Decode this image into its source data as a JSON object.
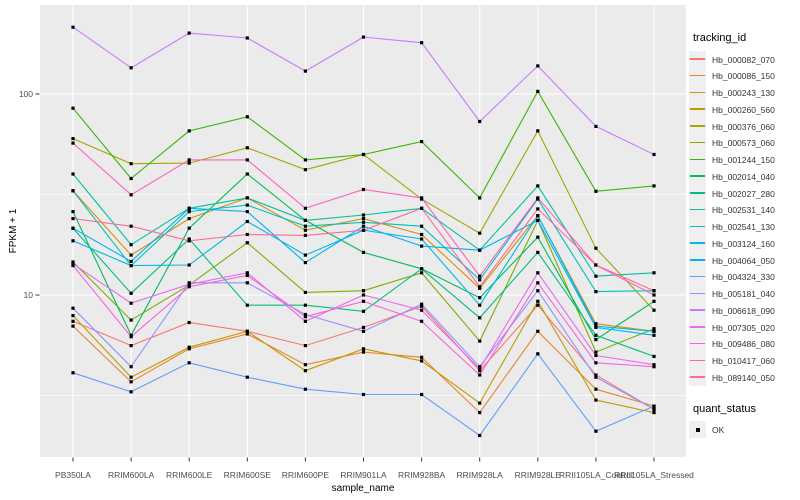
{
  "chart_data": {
    "type": "line",
    "title": "",
    "xlabel": "sample_name",
    "ylabel": "FPKM + 1",
    "y_scale": "log10",
    "ylim": [
      1.6,
      270
    ],
    "grid": true,
    "panel_bg": "#EBEBEB",
    "grid_color": "#FFFFFF",
    "point_shape": "filled-square",
    "point_color": "#000000",
    "y_ticks": [
      {
        "label": "100",
        "value": 100
      },
      {
        "label": "10",
        "value": 10
      }
    ],
    "y_minor": [
      31.6,
      3.16
    ],
    "categories": [
      "PB350LA",
      "RRIM600LA",
      "RRIM600LE",
      "RRIM600SE",
      "RRIM600PE",
      "RRIM901LA",
      "RRIM928BA",
      "RRIM928LA",
      "RRIM928LE",
      "RRII105LA_Control",
      "RRII105LA_Stressed"
    ],
    "series": [
      {
        "name": "Hb_000082_070",
        "color": "#F8766D",
        "values": [
          7.4,
          5.6,
          7.3,
          6.6,
          5.6,
          6.9,
          8.8,
          4.2,
          8.9,
          4.0,
          2.7
        ]
      },
      {
        "name": "Hb_000086_150",
        "color": "#EA8331",
        "values": [
          7.0,
          3.7,
          5.4,
          6.4,
          4.5,
          5.2,
          4.9,
          2.6,
          6.6,
          3.4,
          2.8
        ]
      },
      {
        "name": "Hb_000243_130",
        "color": "#D89000",
        "values": [
          33,
          15.8,
          24,
          30.4,
          21,
          24,
          20,
          10.8,
          24.8,
          7.2,
          6.6
        ]
      },
      {
        "name": "Hb_000260_560",
        "color": "#C09B00",
        "values": [
          7.9,
          3.9,
          5.5,
          6.6,
          4.2,
          5.4,
          4.7,
          2.9,
          9.3,
          3.0,
          2.6
        ]
      },
      {
        "name": "Hb_000376_060",
        "color": "#A3A500",
        "values": [
          60,
          45,
          45.3,
          54,
          42,
          50,
          30,
          20.3,
          65.5,
          17.1,
          8.4
        ]
      },
      {
        "name": "Hb_000573_060",
        "color": "#7CAE00",
        "values": [
          14.6,
          7.5,
          11.2,
          18.2,
          10.3,
          10.5,
          12.9,
          5.9,
          23.5,
          5.2,
          6.8
        ]
      },
      {
        "name": "Hb_001244_150",
        "color": "#39B600",
        "values": [
          85,
          38,
          65.5,
          77,
          47,
          50,
          58,
          30.4,
          103,
          32.8,
          34.9
        ]
      },
      {
        "name": "Hb_002014_040",
        "color": "#00BC59",
        "values": [
          26,
          6.3,
          21.5,
          40,
          23.5,
          16.3,
          13.5,
          9.7,
          19.4,
          6.0,
          9.3
        ]
      },
      {
        "name": "Hb_002027_280",
        "color": "#00BF7D",
        "values": [
          21.5,
          10.2,
          19,
          8.9,
          8.9,
          8.3,
          13.5,
          7.7,
          16.3,
          6.3,
          4.95
        ]
      },
      {
        "name": "Hb_002531_140",
        "color": "#00C1A2",
        "values": [
          40,
          17.8,
          27,
          30.4,
          23.5,
          25,
          27,
          16.7,
          34.9,
          12.4,
          12.9
        ]
      },
      {
        "name": "Hb_002541_130",
        "color": "#00BFC4",
        "values": [
          33,
          14,
          26,
          28,
          22,
          23,
          22,
          11.9,
          30,
          10.4,
          10.5
        ]
      },
      {
        "name": "Hb_003124_160",
        "color": "#00B8E5",
        "values": [
          18.6,
          14,
          14.1,
          23.2,
          15.8,
          21,
          19,
          8.9,
          24.8,
          7.0,
          6.6
        ]
      },
      {
        "name": "Hb_004064_050",
        "color": "#00B0F6",
        "values": [
          21.5,
          14.7,
          27,
          26,
          14.5,
          22,
          17.5,
          16.7,
          23.5,
          6.9,
          6.3
        ]
      },
      {
        "name": "Hb_004324_330",
        "color": "#619CFF",
        "values": [
          4.1,
          3.3,
          4.6,
          3.9,
          3.4,
          3.2,
          3.2,
          2.0,
          5.1,
          2.1,
          2.8
        ]
      },
      {
        "name": "Hb_005181_040",
        "color": "#9590FF",
        "values": [
          8.6,
          4.4,
          11.5,
          11.5,
          8.0,
          6.6,
          9.0,
          4.4,
          10.5,
          3.9,
          2.7
        ]
      },
      {
        "name": "Hb_006618_090",
        "color": "#C77CFF",
        "values": [
          215,
          135,
          201,
          190,
          130,
          192,
          180,
          73,
          138,
          69,
          50
        ]
      },
      {
        "name": "Hb_007305_020",
        "color": "#E76BF3",
        "values": [
          14.3,
          9.1,
          11.3,
          12.9,
          7.4,
          10,
          8.4,
          4.3,
          12.9,
          5.0,
          4.5
        ]
      },
      {
        "name": "Hb_009486_080",
        "color": "#FA62DB",
        "values": [
          14,
          6.2,
          11,
          12.5,
          7.8,
          9.3,
          7.4,
          4.0,
          11.5,
          4.6,
          4.4
        ]
      },
      {
        "name": "Hb_010417_060",
        "color": "#FF62BC",
        "values": [
          57,
          31.5,
          47,
          47,
          27,
          33.5,
          30.4,
          12.4,
          30.4,
          14.1,
          10
        ]
      },
      {
        "name": "Hb_089140_050",
        "color": "#FF6A98",
        "values": [
          24,
          22,
          18.6,
          20,
          19.8,
          21,
          27,
          11,
          26.8,
          14.1,
          10.5
        ]
      }
    ],
    "legend_position": "right"
  },
  "legend": {
    "tracking_title": "tracking_id",
    "quant_title": "quant_status",
    "quant_items": [
      {
        "label": "OK"
      }
    ]
  }
}
